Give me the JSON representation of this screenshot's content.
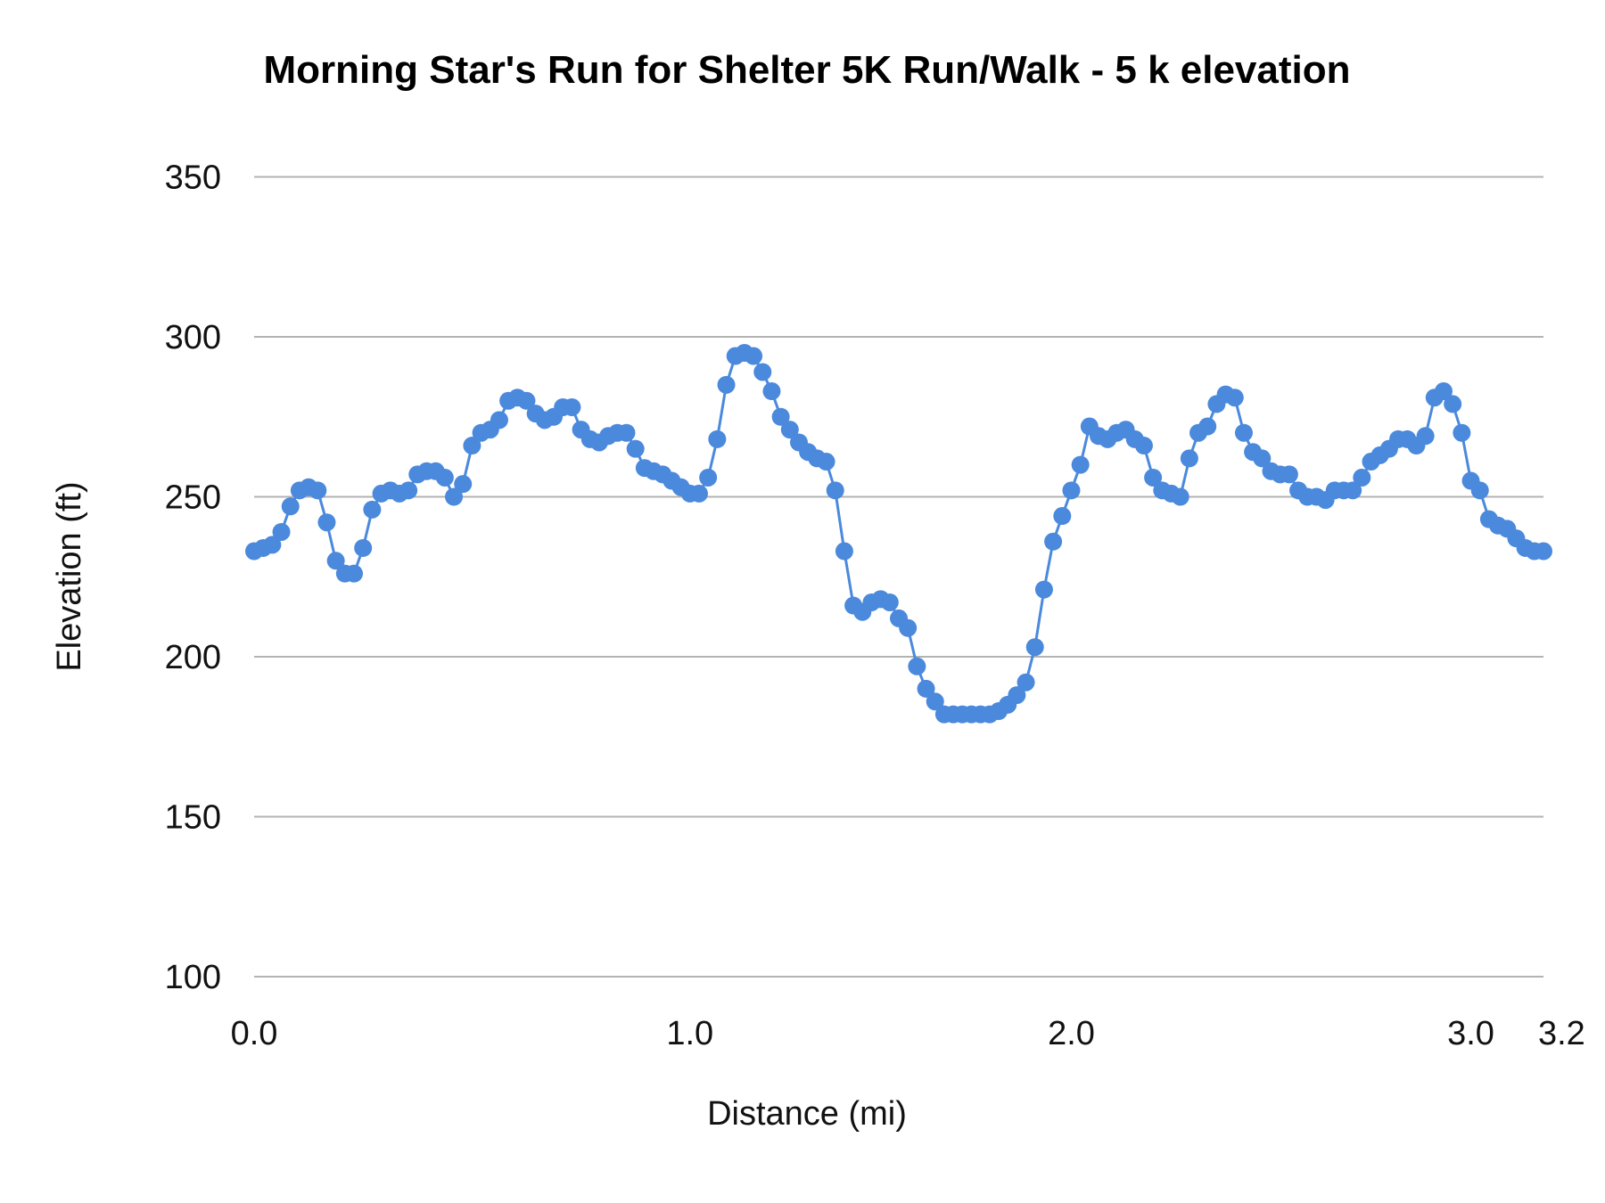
{
  "chart_data": {
    "type": "line",
    "title": "Morning Star's Run for Shelter 5K Run/Walk - 5 k elevation",
    "xlabel": "Distance (mi)",
    "ylabel": "Elevation (ft)",
    "ylim": [
      100,
      350
    ],
    "yticks": [
      "100",
      "150",
      "200",
      "250",
      "300",
      "350"
    ],
    "xticks": [
      {
        "label": "0.0",
        "index": 0
      },
      {
        "label": "1.0",
        "index": 48
      },
      {
        "label": "2.0",
        "index": 90
      },
      {
        "label": "3.0",
        "index": 134
      },
      {
        "label": "3.2",
        "index": 144
      }
    ],
    "grid": true,
    "markers": true,
    "color": "#4a89dc",
    "series": [
      {
        "values": [
          233,
          234,
          235,
          239,
          247,
          252,
          253,
          252,
          242,
          230,
          226,
          226,
          234,
          246,
          251,
          252,
          251,
          252,
          257,
          258,
          258,
          256,
          250,
          254,
          266,
          270,
          271,
          274,
          280,
          281,
          280,
          276,
          274,
          275,
          278,
          278,
          271,
          268,
          267,
          269,
          270,
          270,
          265,
          259,
          258,
          257,
          255,
          253,
          251,
          251,
          256,
          268,
          285,
          294,
          295,
          294,
          289,
          283,
          275,
          271,
          267,
          264,
          262,
          261,
          252,
          233,
          216,
          214,
          217,
          218,
          217,
          212,
          209,
          197,
          190,
          186,
          182,
          182,
          182,
          182,
          182,
          182,
          183,
          185,
          188,
          192,
          203,
          221,
          236,
          244,
          252,
          260,
          272,
          269,
          268,
          270,
          271,
          268,
          266,
          256,
          252,
          251,
          250,
          262,
          270,
          272,
          279,
          282,
          281,
          270,
          264,
          262,
          258,
          257,
          257,
          252,
          250,
          250,
          249,
          252,
          252,
          252,
          256,
          261,
          263,
          265,
          268,
          268,
          266,
          269,
          281,
          283,
          279,
          270,
          255,
          252,
          243,
          241,
          240,
          237,
          234,
          233,
          233
        ]
      }
    ]
  }
}
